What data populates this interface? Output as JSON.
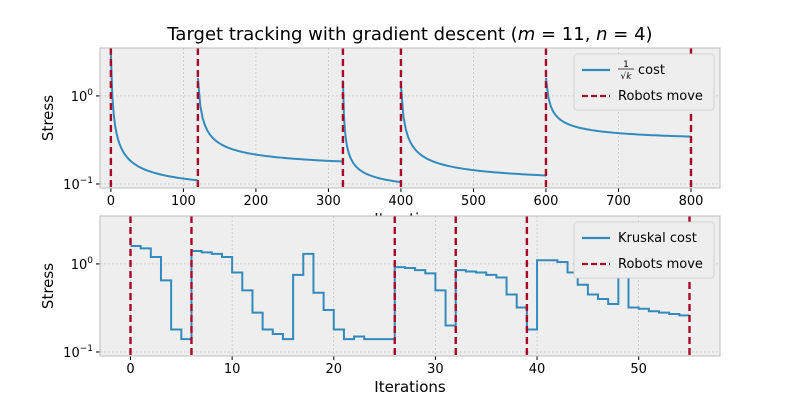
{
  "chart_data": [
    {
      "type": "line",
      "title": "Target tracking with gradient descent",
      "title_math": {
        "m": "m",
        "m_value": "11",
        "n": "n",
        "n_value": "4"
      },
      "xlabel": "Iterations",
      "ylabel": "Stress",
      "xlim": [
        -15,
        840
      ],
      "ylim": [
        0.09,
        3.5
      ],
      "yscale": "log",
      "grid": true,
      "xticks": [
        0,
        100,
        200,
        300,
        400,
        500,
        600,
        700,
        800
      ],
      "yticks": [
        {
          "value": 1,
          "base": "10",
          "exp": "0"
        },
        {
          "value": 0.1,
          "base": "10",
          "exp": "−1"
        }
      ],
      "legend_position": "top-right",
      "series": [
        {
          "name": "cost",
          "legend_prefix": {
            "numerator": "1",
            "radical": "√",
            "variable": "k"
          },
          "color": "#348ABD",
          "segments": [
            {
              "start": 0,
              "end": 120,
              "y_start": 3.0,
              "y_end": 0.11
            },
            {
              "start": 120,
              "end": 320,
              "y_start": 1.6,
              "y_end": 0.18
            },
            {
              "start": 320,
              "end": 400,
              "y_start": 1.5,
              "y_end": 0.105
            },
            {
              "start": 400,
              "end": 600,
              "y_start": 1.3,
              "y_end": 0.125
            },
            {
              "start": 600,
              "end": 800,
              "y_start": 1.6,
              "y_end": 0.345
            }
          ]
        },
        {
          "name": "Robots move",
          "style": "dashed-vertical",
          "color": "#A60628",
          "x": [
            0,
            120,
            320,
            400,
            600,
            800
          ]
        }
      ]
    },
    {
      "type": "line",
      "xlabel": "Iterations",
      "ylabel": "Stress",
      "xlim": [
        -3,
        58
      ],
      "ylim": [
        0.09,
        3.5
      ],
      "yscale": "log",
      "grid": true,
      "xticks": [
        0,
        10,
        20,
        30,
        40,
        50
      ],
      "yticks": [
        {
          "value": 1,
          "base": "10",
          "exp": "0"
        },
        {
          "value": 0.1,
          "base": "10",
          "exp": "−1"
        }
      ],
      "legend_position": "top-right",
      "series": [
        {
          "name": "Kruskal cost",
          "color": "#348ABD",
          "step": "post",
          "x": [
            0,
            1,
            2,
            3,
            4,
            5,
            6,
            7,
            8,
            9,
            10,
            11,
            12,
            13,
            14,
            15,
            16,
            17,
            18,
            19,
            20,
            21,
            22,
            23,
            24,
            25,
            26,
            27,
            28,
            29,
            30,
            31,
            32,
            33,
            34,
            35,
            36,
            37,
            38,
            39,
            40,
            41,
            42,
            43,
            44,
            45,
            46,
            47,
            48,
            49,
            50,
            51,
            52,
            53,
            54,
            55
          ],
          "y": [
            1.6,
            1.5,
            1.2,
            0.65,
            0.18,
            0.14,
            1.4,
            1.35,
            1.3,
            1.2,
            0.8,
            0.5,
            0.28,
            0.18,
            0.16,
            0.14,
            0.75,
            1.3,
            0.47,
            0.3,
            0.18,
            0.14,
            0.15,
            0.14,
            0.14,
            0.14,
            0.92,
            0.9,
            0.85,
            0.78,
            0.5,
            0.2,
            0.85,
            0.82,
            0.8,
            0.75,
            0.7,
            0.45,
            0.32,
            0.18,
            1.1,
            1.1,
            1.05,
            0.8,
            0.58,
            0.45,
            0.4,
            0.35,
            1.5,
            0.32,
            0.31,
            0.29,
            0.28,
            0.27,
            0.26,
            0.26
          ]
        },
        {
          "name": "Robots move",
          "style": "dashed-vertical",
          "color": "#A60628",
          "x": [
            0,
            6,
            26,
            32,
            39,
            55
          ]
        }
      ]
    }
  ]
}
